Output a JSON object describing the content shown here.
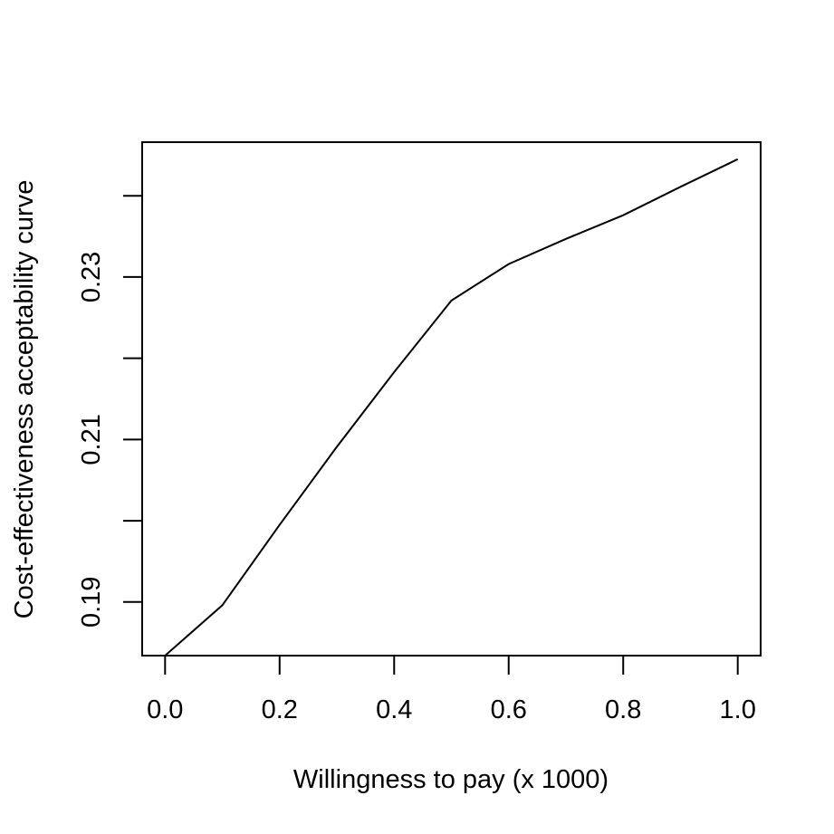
{
  "chart_data": {
    "type": "line",
    "title": "",
    "xlabel": "Willingness to pay (x 1000)",
    "ylabel": "Cost-effectiveness acceptability curve",
    "xlim": [
      -0.04,
      1.04
    ],
    "ylim": [
      0.1834,
      0.2466
    ],
    "x_ticks": [
      0.0,
      0.2,
      0.4,
      0.6,
      0.8,
      1.0
    ],
    "x_tick_labels": [
      "0.0",
      "0.2",
      "0.4",
      "0.6",
      "0.8",
      "1.0"
    ],
    "y_ticks": [
      0.19,
      0.2,
      0.21,
      0.22,
      0.23,
      0.24
    ],
    "y_tick_labels": [
      "0.19",
      "",
      "0.21",
      "",
      "0.23",
      ""
    ],
    "grid": false,
    "series": [
      {
        "x": [
          0.0,
          0.1,
          0.2,
          0.3,
          0.4,
          0.5,
          0.6,
          0.7,
          0.8,
          0.9,
          1.0
        ],
        "values": [
          0.1834,
          0.1896,
          0.1995,
          0.2091,
          0.2183,
          0.2271,
          0.2316,
          0.2347,
          0.2376,
          0.2411,
          0.2445
        ]
      }
    ],
    "colors": {
      "line": "#000000",
      "axes": "#000000"
    }
  }
}
